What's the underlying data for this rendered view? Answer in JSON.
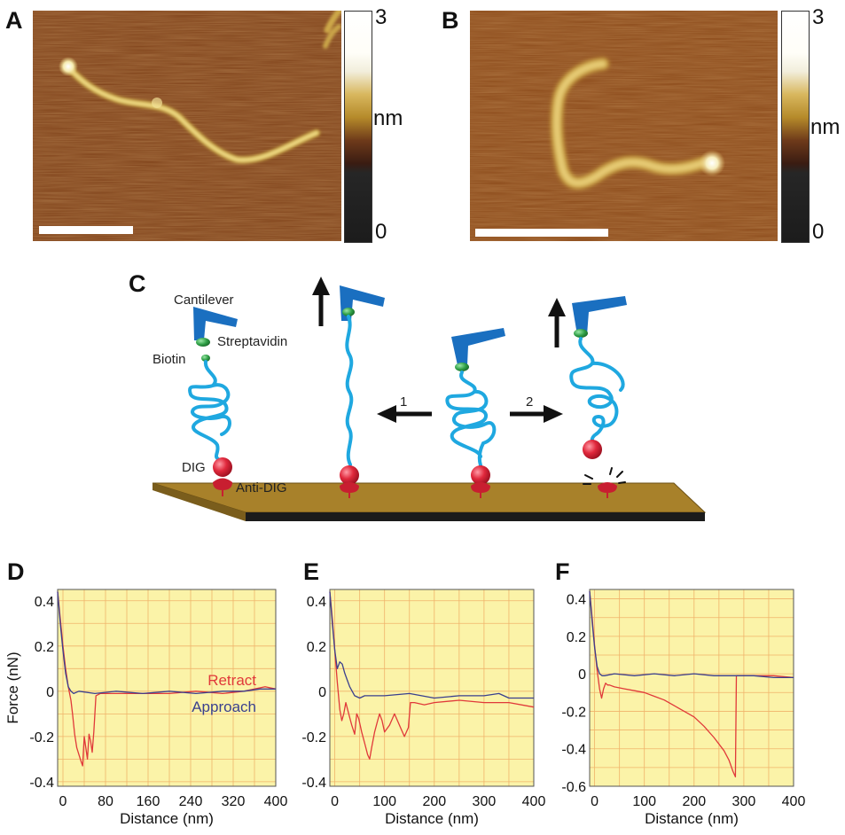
{
  "panels": {
    "A": {
      "label": "A",
      "colorbar_max": "3",
      "colorbar_unit": "nm",
      "colorbar_min": "0"
    },
    "B": {
      "label": "B",
      "colorbar_max": "3",
      "colorbar_unit": "nm",
      "colorbar_min": "0"
    },
    "C": {
      "label": "C",
      "labels": {
        "cantilever": "Cantilever",
        "streptavidin": "Streptavidin",
        "biotin": "Biotin",
        "dig": "DIG",
        "anti_dig": "Anti-DIG",
        "arrow_1": "1",
        "arrow_2": "2"
      }
    },
    "D": {
      "label": "D"
    },
    "E": {
      "label": "E"
    },
    "F": {
      "label": "F"
    }
  },
  "colors": {
    "afm_dark": "#6e3514",
    "afm_mid": "#8b4a1e",
    "afm_bright": "#e8d27a",
    "chain": "#1fa8e0",
    "cantilever": "#1a6fc0",
    "streptavidin": "#2e9e45",
    "dig": "#e0283c",
    "surface": "#a8812a",
    "plot_bg": "#fbf3a8",
    "grid": "#f0b36a",
    "retract": "#e0393a",
    "approach": "#3a3f8e"
  },
  "chart_data": [
    {
      "id": "D",
      "type": "line",
      "xlabel": "Distance (nm)",
      "ylabel": "Force (nN)",
      "xlim": [
        -10,
        400
      ],
      "ylim": [
        -0.42,
        0.45
      ],
      "xticks": [
        0,
        80,
        160,
        240,
        320,
        400
      ],
      "yticks": [
        0.4,
        0.2,
        0,
        -0.2,
        -0.4
      ],
      "ytick_labels": [
        "0.4",
        "0.2",
        "0",
        "-0.2",
        "-0.4"
      ],
      "grid": true,
      "legend": [
        {
          "name": "Retract",
          "color": "#e0393a"
        },
        {
          "name": "Approach",
          "color": "#3a3f8e"
        }
      ],
      "series": [
        {
          "name": "Retract",
          "x": [
            -10,
            -5,
            0,
            5,
            10,
            15,
            18,
            22,
            26,
            30,
            34,
            37,
            40,
            43,
            46,
            49,
            52,
            55,
            58,
            62,
            70,
            100,
            150,
            200,
            250,
            300,
            340,
            360,
            380,
            400
          ],
          "y": [
            0.44,
            0.32,
            0.2,
            0.1,
            0.02,
            -0.04,
            -0.1,
            -0.19,
            -0.25,
            -0.28,
            -0.31,
            -0.33,
            -0.2,
            -0.25,
            -0.3,
            -0.19,
            -0.22,
            -0.27,
            -0.18,
            -0.02,
            -0.01,
            -0.01,
            -0.01,
            -0.01,
            0.0,
            -0.01,
            0.0,
            0.01,
            0.02,
            0.01
          ]
        },
        {
          "name": "Approach",
          "x": [
            -10,
            -5,
            0,
            5,
            10,
            15,
            20,
            30,
            60,
            100,
            150,
            200,
            250,
            300,
            340,
            370,
            400
          ],
          "y": [
            0.44,
            0.3,
            0.18,
            0.08,
            0.02,
            0.0,
            -0.01,
            0.0,
            -0.01,
            0.0,
            -0.01,
            0.0,
            -0.01,
            0.0,
            0.0,
            0.01,
            0.01
          ]
        }
      ]
    },
    {
      "id": "E",
      "type": "line",
      "xlabel": "Distance (nm)",
      "xlim": [
        -10,
        400
      ],
      "ylim": [
        -0.42,
        0.45
      ],
      "xticks": [
        0,
        100,
        200,
        300,
        400
      ],
      "yticks": [
        0.4,
        0.2,
        0,
        -0.2,
        -0.4
      ],
      "ytick_labels": [
        "0.4",
        "0.2",
        "0",
        "-0.2",
        "-0.4"
      ],
      "grid": true,
      "series": [
        {
          "name": "Retract",
          "x": [
            -10,
            -5,
            0,
            5,
            10,
            14,
            18,
            22,
            28,
            34,
            40,
            44,
            48,
            54,
            60,
            66,
            70,
            74,
            80,
            86,
            90,
            95,
            100,
            110,
            116,
            120,
            130,
            140,
            148,
            152,
            160,
            180,
            200,
            250,
            300,
            350,
            400
          ],
          "y": [
            0.44,
            0.32,
            0.18,
            0.04,
            -0.08,
            -0.13,
            -0.1,
            -0.05,
            -0.1,
            -0.15,
            -0.19,
            -0.1,
            -0.12,
            -0.18,
            -0.23,
            -0.28,
            -0.3,
            -0.25,
            -0.18,
            -0.13,
            -0.1,
            -0.13,
            -0.18,
            -0.15,
            -0.12,
            -0.1,
            -0.15,
            -0.2,
            -0.16,
            -0.05,
            -0.05,
            -0.06,
            -0.05,
            -0.04,
            -0.05,
            -0.05,
            -0.07
          ]
        },
        {
          "name": "Approach",
          "x": [
            -10,
            -5,
            0,
            5,
            10,
            15,
            20,
            25,
            30,
            40,
            50,
            60,
            80,
            100,
            150,
            200,
            250,
            300,
            330,
            350,
            380,
            400
          ],
          "y": [
            0.44,
            0.3,
            0.18,
            0.1,
            0.13,
            0.12,
            0.08,
            0.05,
            0.02,
            -0.02,
            -0.03,
            -0.02,
            -0.02,
            -0.02,
            -0.01,
            -0.03,
            -0.02,
            -0.02,
            -0.01,
            -0.03,
            -0.03,
            -0.03
          ]
        }
      ]
    },
    {
      "id": "F",
      "type": "line",
      "xlabel": "Distance (nm)",
      "xlim": [
        -10,
        400
      ],
      "ylim": [
        -0.6,
        0.45
      ],
      "xticks": [
        0,
        100,
        200,
        300,
        400
      ],
      "yticks": [
        0.4,
        0.2,
        0,
        -0.2,
        -0.4,
        -0.6
      ],
      "ytick_labels": [
        "0.4",
        "0.2",
        "0",
        "-0.2",
        "-0.4",
        "-0.6"
      ],
      "grid": true,
      "series": [
        {
          "name": "Retract",
          "x": [
            -10,
            -5,
            0,
            5,
            10,
            14,
            18,
            22,
            26,
            30,
            40,
            60,
            80,
            100,
            120,
            140,
            160,
            180,
            200,
            220,
            240,
            260,
            270,
            278,
            283,
            285,
            290,
            320,
            360,
            400
          ],
          "y": [
            0.44,
            0.3,
            0.15,
            0.02,
            -0.08,
            -0.13,
            -0.08,
            -0.05,
            -0.06,
            -0.06,
            -0.07,
            -0.08,
            -0.09,
            -0.1,
            -0.12,
            -0.14,
            -0.17,
            -0.2,
            -0.23,
            -0.28,
            -0.34,
            -0.41,
            -0.46,
            -0.52,
            -0.55,
            -0.01,
            -0.01,
            -0.01,
            -0.01,
            -0.02
          ]
        },
        {
          "name": "Approach",
          "x": [
            -10,
            -5,
            0,
            5,
            10,
            15,
            20,
            40,
            80,
            120,
            160,
            200,
            240,
            280,
            320,
            360,
            400
          ],
          "y": [
            0.44,
            0.28,
            0.14,
            0.04,
            0.0,
            -0.01,
            -0.01,
            0.0,
            -0.01,
            0.0,
            -0.01,
            0.0,
            -0.01,
            -0.01,
            -0.01,
            -0.02,
            -0.02
          ]
        }
      ]
    }
  ]
}
